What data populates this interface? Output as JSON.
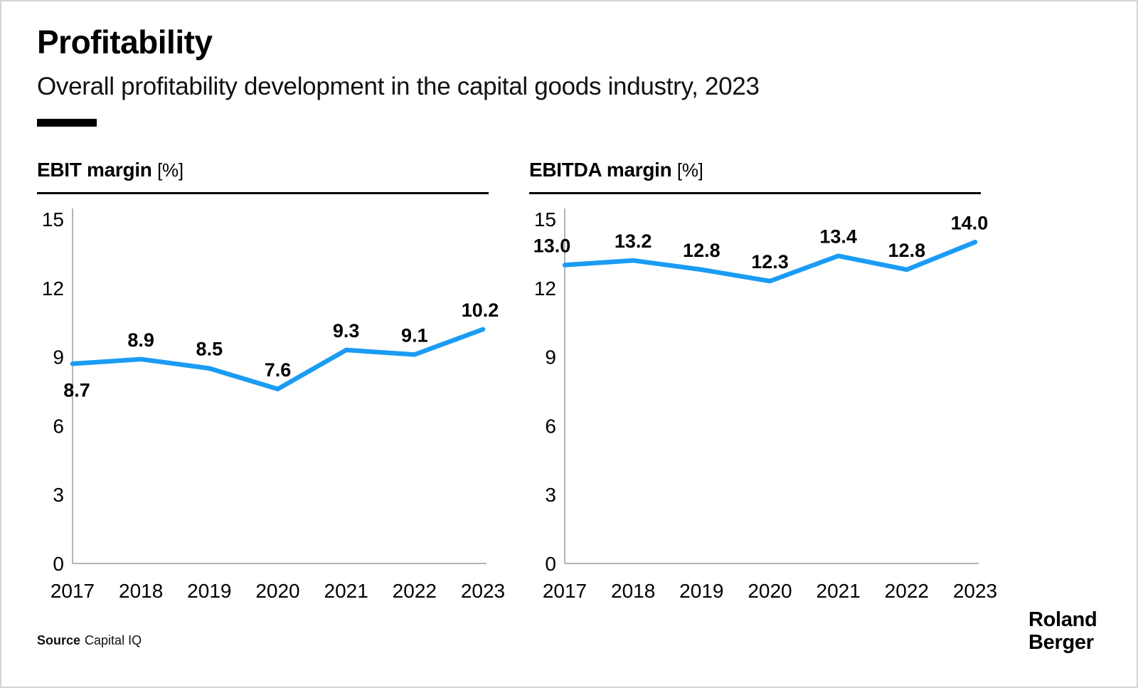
{
  "page": {
    "title": "Profitability",
    "subtitle": "Overall profitability development in the capital goods industry, 2023"
  },
  "source": {
    "label": "Source",
    "value": "Capital IQ"
  },
  "logo": {
    "line1": "Roland",
    "line2": "Berger"
  },
  "colors": {
    "line": "#1A9CF4",
    "axis": "#9B9B9B",
    "text": "#000000"
  },
  "chart_data": [
    {
      "type": "line",
      "title": "EBIT margin",
      "unit": "[%]",
      "categories": [
        "2017",
        "2018",
        "2019",
        "2020",
        "2021",
        "2022",
        "2023"
      ],
      "values": [
        8.7,
        8.9,
        8.5,
        7.6,
        9.3,
        9.1,
        10.2
      ],
      "ylim": [
        0,
        15
      ],
      "yticks": [
        0,
        3,
        6,
        9,
        12,
        15
      ],
      "grid": false,
      "legend": false,
      "xlabel": "",
      "ylabel": "EBIT margin [%]",
      "label_positions": [
        "below",
        "above",
        "above",
        "above",
        "above",
        "above",
        "above"
      ],
      "label_dx": [
        6,
        0,
        0,
        0,
        0,
        0,
        -4
      ]
    },
    {
      "type": "line",
      "title": "EBITDA margin",
      "unit": "[%]",
      "categories": [
        "2017",
        "2018",
        "2019",
        "2020",
        "2021",
        "2022",
        "2023"
      ],
      "values": [
        13.0,
        13.2,
        12.8,
        12.3,
        13.4,
        12.8,
        14.0
      ],
      "ylim": [
        0,
        15
      ],
      "yticks": [
        0,
        3,
        6,
        9,
        12,
        15
      ],
      "grid": false,
      "legend": false,
      "xlabel": "",
      "ylabel": "EBITDA margin [%]",
      "label_positions": [
        "above",
        "above",
        "above",
        "above",
        "above",
        "above",
        "above"
      ],
      "label_dx": [
        -18,
        0,
        0,
        0,
        0,
        0,
        -8
      ]
    }
  ]
}
